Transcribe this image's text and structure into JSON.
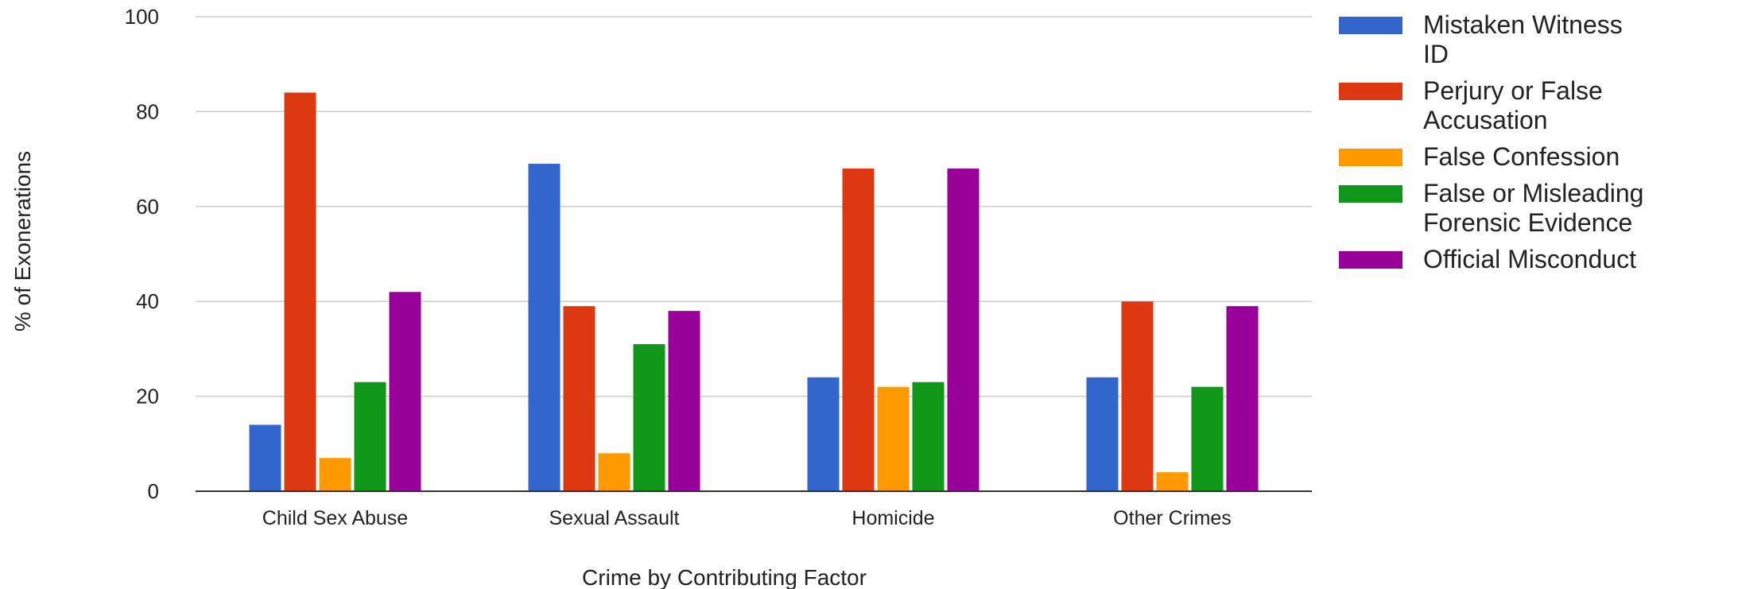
{
  "chart_data": {
    "type": "bar",
    "title": "",
    "xlabel": "Crime by Contributing Factor",
    "ylabel": "% of Exonerations",
    "ylim": [
      0,
      100
    ],
    "yticks": [
      "0",
      "20",
      "40",
      "60",
      "80",
      "100"
    ],
    "grid": true,
    "legend_position": "right",
    "categories": [
      "Child Sex Abuse",
      "Sexual Assault",
      "Homicide",
      "Other Crimes"
    ],
    "series": [
      {
        "name": "Mistaken Witness ID",
        "legend_lines": [
          "Mistaken Witness",
          "ID"
        ],
        "color": "#3366cc",
        "values": [
          14,
          69,
          24,
          24
        ]
      },
      {
        "name": "Perjury or False Accusation",
        "legend_lines": [
          "Perjury or False",
          "Accusation"
        ],
        "color": "#dc3912",
        "values": [
          84,
          39,
          68,
          40
        ]
      },
      {
        "name": "False Confession",
        "legend_lines": [
          "False Confession"
        ],
        "color": "#ff9900",
        "values": [
          7,
          8,
          22,
          4
        ]
      },
      {
        "name": "False or Misleading Forensic Evidence",
        "legend_lines": [
          "False or Misleading",
          "Forensic Evidence"
        ],
        "color": "#109618",
        "values": [
          23,
          31,
          23,
          22
        ]
      },
      {
        "name": "Official Misconduct",
        "legend_lines": [
          "Official Misconduct"
        ],
        "color": "#990099",
        "values": [
          42,
          38,
          68,
          39
        ]
      }
    ]
  }
}
